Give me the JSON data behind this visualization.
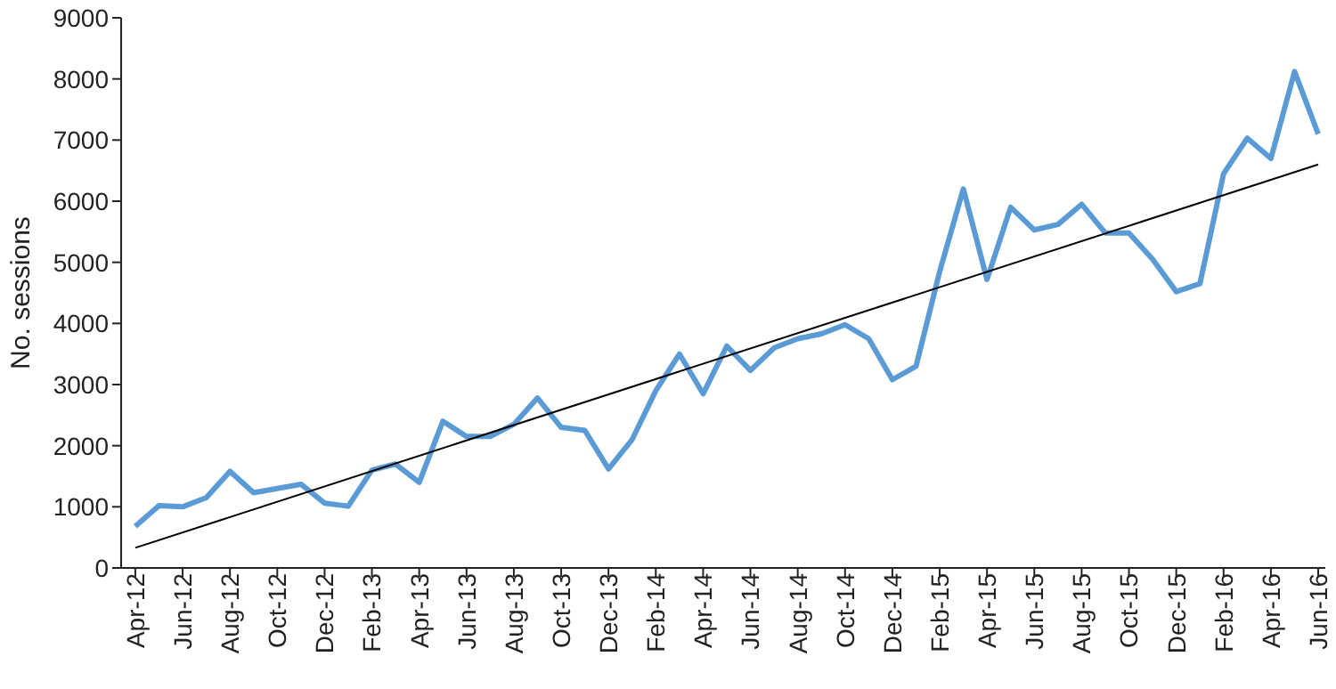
{
  "chart_data": {
    "type": "line",
    "ylabel": "No. sessions",
    "categories": [
      "Apr-12",
      null,
      "Jun-12",
      null,
      "Aug-12",
      null,
      "Oct-12",
      null,
      "Dec-12",
      null,
      "Feb-13",
      null,
      "Apr-13",
      null,
      "Jun-13",
      null,
      "Aug-13",
      null,
      "Oct-13",
      null,
      "Dec-13",
      null,
      "Feb-14",
      null,
      "Apr-14",
      null,
      "Jun-14",
      null,
      "Aug-14",
      null,
      "Oct-14",
      null,
      "Dec-14",
      null,
      "Feb-15",
      null,
      "Apr-15",
      null,
      "Jun-15",
      null,
      "Aug-15",
      null,
      "Oct-15",
      null,
      "Dec-15",
      null,
      "Feb-16",
      null,
      "Apr-16",
      null,
      "Jun-16"
    ],
    "series": [
      {
        "color": "#5b9bd5",
        "values": [
          680,
          1020,
          1000,
          1150,
          1580,
          1230,
          1300,
          1370,
          1060,
          1010,
          1600,
          1700,
          1400,
          2400,
          2150,
          2150,
          2350,
          2780,
          2300,
          2250,
          1620,
          2100,
          2900,
          3500,
          2850,
          3630,
          3230,
          3600,
          3750,
          3830,
          3980,
          3750,
          3080,
          3300,
          4850,
          6200,
          4720,
          5900,
          5530,
          5620,
          5950,
          5480,
          5480,
          5050,
          4520,
          4650,
          6450,
          7030,
          6700,
          8120,
          7100
        ]
      },
      {
        "type": "line",
        "color": "#000000",
        "x": [
          "Apr-12",
          "Jun-16"
        ],
        "values": [
          330,
          6600
        ]
      }
    ],
    "ylim": [
      0,
      9000
    ],
    "yticks": [
      0,
      1000,
      2000,
      3000,
      4000,
      5000,
      6000,
      7000,
      8000,
      9000
    ],
    "grid": false,
    "marker": "none",
    "line_style": "solid"
  }
}
